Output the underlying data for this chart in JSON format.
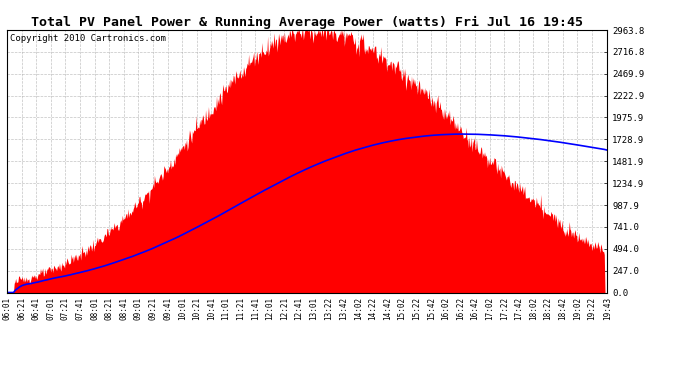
{
  "title": "Total PV Panel Power & Running Average Power (watts) Fri Jul 16 19:45",
  "copyright": "Copyright 2010 Cartronics.com",
  "yticks": [
    0.0,
    247.0,
    494.0,
    741.0,
    987.9,
    1234.9,
    1481.9,
    1728.9,
    1975.9,
    2222.9,
    2469.9,
    2716.8,
    2963.8
  ],
  "ymax": 2963.8,
  "fill_color": "#FF0000",
  "avg_color": "#0000FF",
  "background_color": "#FFFFFF",
  "grid_color": "#AAAAAA",
  "title_fontsize": 9.5,
  "copyright_fontsize": 6.5
}
